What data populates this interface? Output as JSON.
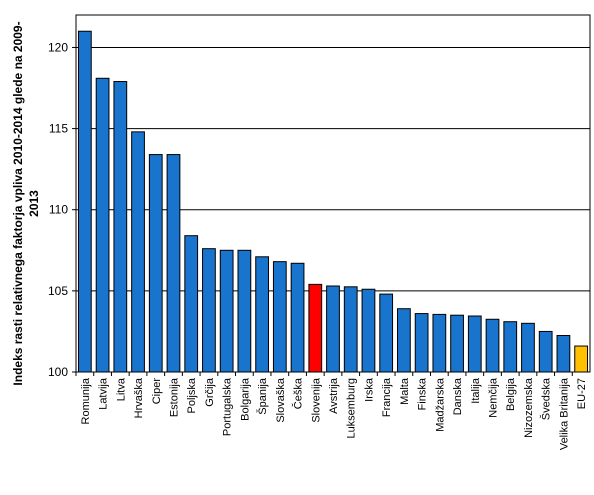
{
  "chart_data": {
    "type": "bar",
    "ylabel_lines": [
      "Indeks rasti relativnega faktorja vpliva 2010-2014 glede na 2009-",
      "2013"
    ],
    "ylim": [
      100,
      122
    ],
    "yticks": [
      100,
      105,
      110,
      115,
      120
    ],
    "grid": true,
    "legend": "none",
    "categories": [
      "Romunija",
      "Latvija",
      "Litva",
      "Hrvaška",
      "Ciper",
      "Estonija",
      "Poljska",
      "Grčija",
      "Portugalska",
      "Bolgarija",
      "Španija",
      "Slovaška",
      "Češka",
      "Slovenija",
      "Avstrija",
      "Luksemburg",
      "Irska",
      "Francija",
      "Malta",
      "Finska",
      "Madžarska",
      "Danska",
      "Italija",
      "Nemčija",
      "Belgija",
      "Nizozemska",
      "Švedska",
      "Velika Britanija",
      "EU-27"
    ],
    "values": [
      121.0,
      118.1,
      117.9,
      114.8,
      113.4,
      113.4,
      108.4,
      107.6,
      107.5,
      107.5,
      107.1,
      106.8,
      106.7,
      105.4,
      105.3,
      105.25,
      105.1,
      104.8,
      103.9,
      103.6,
      103.55,
      103.5,
      103.45,
      103.25,
      103.1,
      103.0,
      102.5,
      102.25,
      101.6
    ],
    "colors": {
      "default": "#1874CD",
      "highlight": "#FF0000",
      "aggregate": "#FFC000"
    },
    "highlight_category": "Slovenija",
    "aggregate_category": "EU-27"
  }
}
